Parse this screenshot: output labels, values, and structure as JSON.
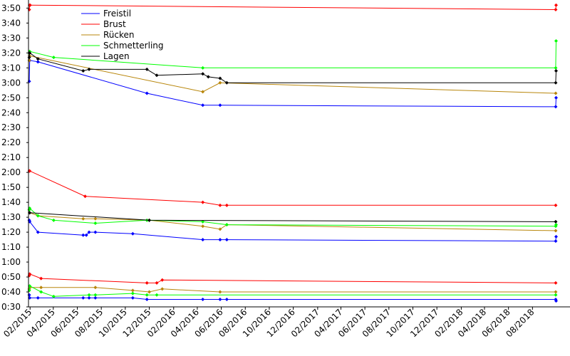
{
  "chart_data": {
    "type": "line",
    "title": "",
    "xlabel": "",
    "ylabel": "",
    "x_axis": {
      "tick_labels": [
        "02/2015",
        "04/2015",
        "06/2015",
        "08/2015",
        "10/2015",
        "12/2015",
        "02/2016",
        "04/2016",
        "06/2016",
        "08/2016",
        "10/2016",
        "12/2016",
        "02/2017",
        "04/2017",
        "06/2017",
        "08/2017",
        "10/2017",
        "12/2017",
        "02/2018",
        "04/2018",
        "06/2018",
        "08/2018"
      ],
      "tick_dates": [
        "2015-02-01",
        "2015-04-01",
        "2015-06-01",
        "2015-08-01",
        "2015-10-01",
        "2015-12-01",
        "2016-02-01",
        "2016-04-01",
        "2016-06-01",
        "2016-08-01",
        "2016-10-01",
        "2016-12-01",
        "2017-02-01",
        "2017-04-01",
        "2017-06-01",
        "2017-08-01",
        "2017-10-01",
        "2017-12-01",
        "2018-02-01",
        "2018-04-01",
        "2018-06-01",
        "2018-08-01"
      ],
      "range": [
        "2015-01-28",
        "2018-10-10"
      ]
    },
    "y_axis": {
      "tick_labels": [
        "0:30",
        "0:40",
        "0:50",
        "1:00",
        "1:10",
        "1:20",
        "1:30",
        "1:40",
        "1:50",
        "2:00",
        "2:10",
        "2:20",
        "2:30",
        "2:40",
        "2:50",
        "3:00",
        "3:10",
        "3:20",
        "3:30",
        "3:40",
        "3:50"
      ],
      "range_seconds": [
        30,
        234
      ]
    },
    "grid": false,
    "legend_position": "top-left",
    "series": [
      {
        "name": "Freistil",
        "color": "#0000ff",
        "lines": [
          {
            "x": [
              "2015-01-30",
              "2015-01-31",
              "2015-02-21",
              "2015-06-16",
              "2015-07-01",
              "2015-07-17",
              "2015-10-20",
              "2015-11-25",
              "2016-04-15",
              "2016-05-29",
              "2016-06-15",
              "2018-09-29",
              "2018-09-30"
            ],
            "y": [
              38,
              36,
              36,
              36,
              36,
              36,
              36,
              35,
              35,
              35,
              35,
              35,
              34
            ]
          },
          {
            "x": [
              "2015-01-30",
              "2015-01-31",
              "2015-02-21",
              "2015-06-16",
              "2015-06-24",
              "2015-07-01",
              "2015-07-17",
              "2015-10-20",
              "2016-04-15",
              "2016-05-29",
              "2016-06-15",
              "2018-09-29",
              "2018-09-30"
            ],
            "y": [
              88,
              87,
              80,
              78,
              78,
              80,
              80,
              79,
              75,
              75,
              75,
              74,
              77
            ]
          },
          {
            "x": [
              "2015-01-30",
              "2015-01-31",
              "2015-02-21",
              "2015-11-25",
              "2016-04-15",
              "2016-05-29",
              "2018-09-29",
              "2018-09-30"
            ],
            "y": [
              181,
              195,
              194,
              173,
              165,
              165,
              164,
              170
            ]
          }
        ]
      },
      {
        "name": "Brust",
        "color": "#ff0000",
        "lines": [
          {
            "x": [
              "2015-01-30",
              "2015-01-31",
              "2015-03-01",
              "2015-11-25",
              "2015-12-20",
              "2016-01-03",
              "2018-09-29"
            ],
            "y": [
              51,
              52,
              49,
              46,
              46,
              48,
              46
            ]
          },
          {
            "x": [
              "2015-01-30",
              "2015-01-31",
              "2015-06-21",
              "2016-04-15",
              "2016-05-29",
              "2016-06-15",
              "2018-09-29"
            ],
            "y": [
              121,
              121,
              104,
              100,
              98,
              98,
              98
            ]
          },
          {
            "x": [
              "2015-01-30",
              "2015-01-31",
              "2015-02-01",
              "2018-09-29",
              "2018-09-30"
            ],
            "y": [
              229,
              232,
              232,
              229,
              232
            ]
          }
        ]
      },
      {
        "name": "Rücken",
        "color": "#b8860b",
        "lines": [
          {
            "x": [
              "2015-01-30",
              "2015-01-31",
              "2015-03-01",
              "2015-07-17",
              "2015-10-20",
              "2015-12-01",
              "2016-01-03",
              "2016-05-29",
              "2018-09-29"
            ],
            "y": [
              42,
              43,
              43,
              43,
              41,
              40,
              42,
              40,
              40
            ]
          },
          {
            "x": [
              "2015-01-30",
              "2015-01-31",
              "2015-02-21",
              "2015-06-16",
              "2015-07-17",
              "2015-12-01",
              "2016-04-15",
              "2016-05-29",
              "2016-06-15",
              "2018-09-29"
            ],
            "y": [
              95,
              93,
              91,
              89,
              89,
              88,
              84,
              82,
              85,
              81
            ]
          },
          {
            "x": [
              "2015-01-30",
              "2015-01-31",
              "2016-04-15",
              "2016-05-29",
              "2018-09-29"
            ],
            "y": [
              195,
              198,
              174,
              180,
              173
            ]
          }
        ]
      },
      {
        "name": "Schmetterling",
        "color": "#00ff00",
        "lines": [
          {
            "x": [
              "2015-01-30",
              "2015-01-31",
              "2015-03-01",
              "2015-04-02",
              "2015-07-01",
              "2015-07-17",
              "2015-10-20",
              "2015-11-25",
              "2015-12-20",
              "2018-09-29"
            ],
            "y": [
              41,
              44,
              40,
              37,
              38,
              38,
              39,
              38,
              38,
              38
            ]
          },
          {
            "x": [
              "2015-01-30",
              "2015-01-31",
              "2015-02-21",
              "2015-04-02",
              "2015-07-17",
              "2015-11-25",
              "2016-04-15",
              "2016-06-15",
              "2018-09-29",
              "2018-09-30"
            ],
            "y": [
              95,
              96,
              91,
              88,
              86,
              88,
              87,
              85,
              84,
              85
            ]
          },
          {
            "x": [
              "2015-01-30",
              "2015-01-31",
              "2015-04-02",
              "2016-04-15",
              "2018-09-29",
              "2018-09-30"
            ],
            "y": [
              200,
              201,
              197,
              190,
              190,
              208
            ]
          }
        ]
      },
      {
        "name": "Lagen",
        "color": "#000000",
        "lines": [
          {
            "x": [
              "2015-01-31",
              "2015-12-01",
              "2018-09-29"
            ],
            "y": [
              93,
              88,
              87
            ]
          },
          {
            "x": [
              "2015-01-30",
              "2015-01-31",
              "2015-02-21",
              "2015-06-16",
              "2015-07-01",
              "2015-11-25",
              "2015-12-20",
              "2016-04-15",
              "2016-04-29",
              "2016-05-29",
              "2016-06-15",
              "2018-09-29",
              "2018-09-30"
            ],
            "y": [
              197,
              200,
              196,
              188,
              189,
              189,
              185,
              186,
              184,
              183,
              180,
              180,
              188
            ]
          }
        ]
      }
    ]
  }
}
